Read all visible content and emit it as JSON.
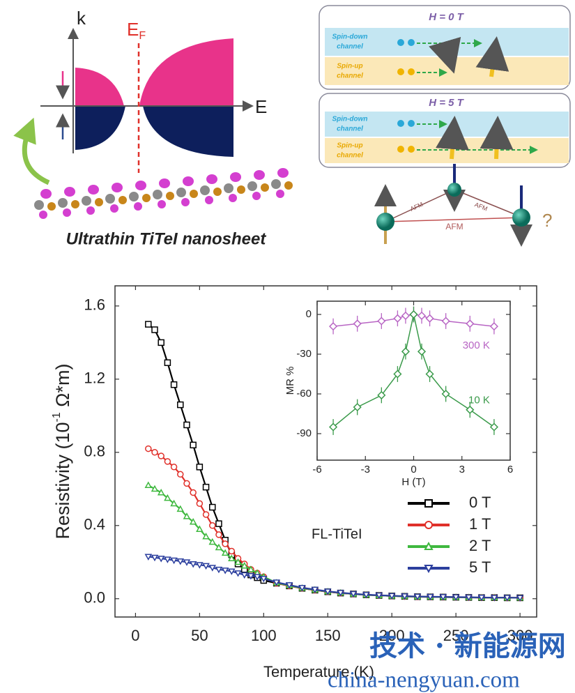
{
  "schematic_left": {
    "k_label": "k",
    "ef_label": "E",
    "ef_sub": "F",
    "e_label": "E",
    "caption": "Ultrathin TiTeI nanosheet"
  },
  "schematic_right": {
    "panels": [
      {
        "title": "H = 0 T",
        "down_channel": [
          "Spin-down",
          "channel"
        ],
        "up_channel": [
          "Spin-up",
          "channel"
        ]
      },
      {
        "title": "H = 5 T",
        "down_channel": [
          "Spin-down",
          "channel"
        ],
        "up_channel": [
          "Spin-up",
          "channel"
        ]
      }
    ],
    "afm_labels": [
      "AFM",
      "AFM",
      "AFM"
    ],
    "question": "?"
  },
  "chart_data": [
    {
      "type": "line",
      "xlabel": "Temperature (K)",
      "ylabel": "Resistivity (10",
      "ylabel_sup": "-1",
      "ylabel_end": " Ω*m)",
      "annotation": "FL-TiTeI",
      "legend": "lower right",
      "x": [
        10,
        15,
        20,
        25,
        30,
        35,
        40,
        45,
        50,
        55,
        60,
        65,
        70,
        75,
        80,
        85,
        90,
        95,
        100,
        110,
        120,
        130,
        140,
        150,
        160,
        170,
        180,
        190,
        200,
        210,
        220,
        230,
        240,
        250,
        260,
        270,
        280,
        290,
        300
      ],
      "series": [
        {
          "name": "0 T",
          "color": "#000000",
          "marker": "square",
          "values": [
            1.5,
            1.47,
            1.4,
            1.29,
            1.17,
            1.06,
            0.95,
            0.84,
            0.72,
            0.61,
            0.5,
            0.41,
            0.32,
            0.24,
            0.19,
            0.16,
            0.13,
            0.115,
            0.1,
            0.085,
            0.07,
            0.057,
            0.047,
            0.038,
            0.031,
            0.026,
            0.021,
            0.018,
            0.015,
            0.013,
            0.011,
            0.01,
            0.009,
            0.008,
            0.007,
            0.006,
            0.006,
            0.005,
            0.005
          ]
        },
        {
          "name": "1 T",
          "color": "#e0302a",
          "marker": "circle",
          "values": [
            0.82,
            0.8,
            0.78,
            0.75,
            0.72,
            0.68,
            0.63,
            0.58,
            0.52,
            0.46,
            0.4,
            0.35,
            0.3,
            0.26,
            0.22,
            0.19,
            0.16,
            0.14,
            0.12,
            0.085,
            0.07,
            0.057,
            0.047,
            0.038,
            0.031,
            0.026,
            0.021,
            0.018,
            0.015,
            0.013,
            0.011,
            0.01,
            0.009,
            0.008,
            0.007,
            0.006,
            0.006,
            0.005,
            0.005
          ]
        },
        {
          "name": "2 T",
          "color": "#3fb83f",
          "marker": "triangle-up",
          "values": [
            0.62,
            0.6,
            0.58,
            0.55,
            0.52,
            0.49,
            0.45,
            0.42,
            0.38,
            0.34,
            0.31,
            0.28,
            0.25,
            0.22,
            0.2,
            0.18,
            0.16,
            0.14,
            0.12,
            0.087,
            0.072,
            0.058,
            0.048,
            0.039,
            0.032,
            0.026,
            0.021,
            0.018,
            0.015,
            0.013,
            0.011,
            0.01,
            0.009,
            0.008,
            0.007,
            0.006,
            0.006,
            0.005,
            0.005
          ]
        },
        {
          "name": "5 T",
          "color": "#2c3f9e",
          "marker": "triangle-down",
          "values": [
            0.23,
            0.225,
            0.22,
            0.215,
            0.21,
            0.205,
            0.2,
            0.19,
            0.185,
            0.18,
            0.17,
            0.16,
            0.155,
            0.15,
            0.14,
            0.13,
            0.125,
            0.12,
            0.11,
            0.09,
            0.075,
            0.06,
            0.05,
            0.04,
            0.033,
            0.027,
            0.022,
            0.019,
            0.016,
            0.014,
            0.012,
            0.011,
            0.01,
            0.009,
            0.008,
            0.007,
            0.006,
            0.006,
            0.005
          ]
        }
      ],
      "xlim": [
        -16,
        313
      ],
      "xticks": [
        0,
        50,
        100,
        150,
        200,
        250,
        300
      ],
      "ylim": [
        -0.1,
        1.71
      ],
      "yticks": [
        {
          "value": 0,
          "label": "0.0"
        },
        0.4,
        0.8,
        1.2,
        1.6
      ]
    },
    {
      "type": "line",
      "xlabel": "H (T)",
      "ylabel": "MR %",
      "series": [
        {
          "name": "300 K",
          "color": "#b865c4",
          "marker": "diamond",
          "x": [
            -5,
            -3.5,
            -2,
            -1,
            -0.5,
            0,
            0.5,
            1,
            2,
            3.5,
            5
          ],
          "values": [
            -9,
            -7,
            -5,
            -3,
            -1,
            0,
            -1,
            -3,
            -5,
            -7,
            -9
          ],
          "errors": [
            6,
            6,
            6,
            6,
            6,
            6,
            6,
            6,
            6,
            6,
            6
          ]
        },
        {
          "name": "10 K",
          "color": "#3a9a4a",
          "marker": "diamond",
          "x": [
            -5,
            -3.5,
            -2,
            -1,
            -0.5,
            0,
            0.5,
            1,
            2,
            3.5,
            5
          ],
          "values": [
            -85,
            -70,
            -61,
            -45,
            -28,
            0,
            -28,
            -45,
            -60,
            -72,
            -85
          ],
          "errors": [
            6,
            6,
            6,
            6,
            6,
            6,
            6,
            6,
            6,
            6,
            6
          ]
        }
      ],
      "xlim": [
        -6,
        6
      ],
      "xticks": [
        -6,
        -3,
        0,
        3,
        6
      ],
      "ylim": [
        -110,
        10
      ],
      "yticks": [
        0,
        -30,
        -60,
        -90
      ]
    }
  ],
  "watermark": {
    "line1": "技术 · 新能源网",
    "line2": "china-nengyuan.com"
  }
}
